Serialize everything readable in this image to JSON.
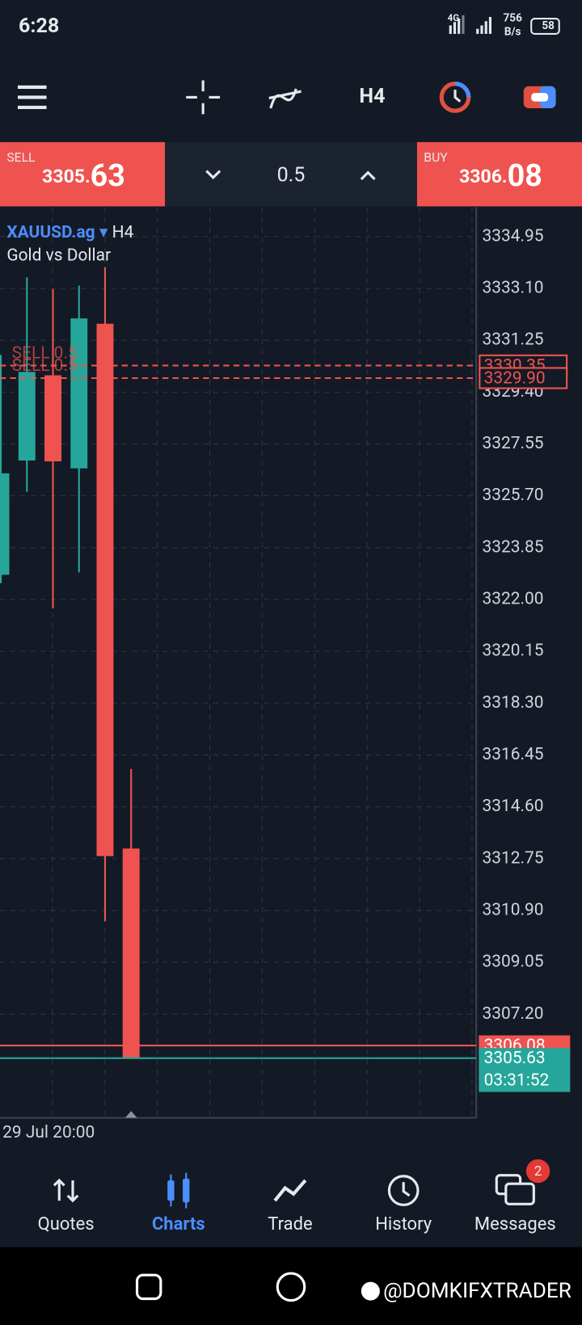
{
  "status_bar": {
    "time": "6:28",
    "network": "4G",
    "speed": "756",
    "speed_unit": "B/s",
    "battery": "58"
  },
  "toolbar": {
    "timeframe": "H4"
  },
  "trade_panel": {
    "sell": {
      "label": "SELL",
      "price_main": "3305.",
      "price_big": "63"
    },
    "volume": "0.5",
    "buy": {
      "label": "BUY",
      "price_main": "3306.",
      "price_big": "08"
    }
  },
  "chart_data": {
    "type": "candlestick",
    "symbol": "XAUUSD.ag",
    "timeframe": "H4",
    "description": "Gold vs Dollar",
    "categories": [
      null,
      null,
      null,
      null,
      null,
      "29 Jul 20:00"
    ],
    "open": [
      3322.88,
      3326.96,
      3330.0,
      3326.68,
      3331.84,
      3313.11
    ],
    "high": [
      3330.73,
      3333.5,
      3333.08,
      3333.2,
      3333.86,
      3315.95
    ],
    "low": [
      3322.58,
      3325.84,
      3321.68,
      3322.97,
      3310.52,
      3305.63
    ],
    "close": [
      3326.5,
      3330.12,
      3326.93,
      3332.03,
      3312.84,
      3305.63
    ],
    "up_color": "#26a69a",
    "down_color": "#ef5350",
    "ylim": [
      3303.5,
      3336.0
    ],
    "yticks": [
      3334.95,
      {
        "value": 3333.1,
        "label": "3333.10"
      },
      3331.25,
      {
        "value": 3329.4,
        "label": "3329.40"
      },
      3327.55,
      {
        "value": 3325.7,
        "label": "3325.70"
      },
      3323.85,
      {
        "value": 3322.0,
        "label": "3322.00"
      },
      3320.15,
      {
        "value": 3318.3,
        "label": "3318.30"
      },
      3316.45,
      {
        "value": 3314.6,
        "label": "3314.60"
      },
      3312.75,
      {
        "value": 3310.9,
        "label": "3310.90"
      },
      3309.05,
      {
        "value": 3307.2,
        "label": "3307.20"
      }
    ],
    "grid": true,
    "orders": {
      "names": [
        "SELL 0.5",
        "SELL 0.5"
      ],
      "values": [
        3330.35,
        3329.9
      ],
      "value_labels": [
        "3330.35",
        "3329.90"
      ],
      "color": "#ef5350"
    },
    "quotes": {
      "values": [
        3306.08,
        3305.63
      ],
      "value_labels": [
        "3306.08",
        "3305.63"
      ],
      "colors": [
        "#ef5350",
        "#26a69a"
      ]
    },
    "countdown": "03:31:52"
  },
  "bottom_nav": {
    "items": [
      "Quotes",
      "Charts",
      "Trade",
      "History",
      "Messages"
    ],
    "active": "Charts",
    "badge": "2"
  },
  "watermark": "@DOMKIFXTRADER"
}
